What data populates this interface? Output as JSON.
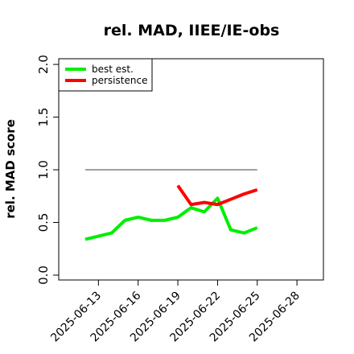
{
  "chart_data": {
    "type": "line",
    "title": "rel. MAD, IIEE/IE-obs",
    "y_label": "rel. MAD score",
    "x": [
      "2025-06-12",
      "2025-06-13",
      "2025-06-14",
      "2025-06-15",
      "2025-06-16",
      "2025-06-17",
      "2025-06-18",
      "2025-06-19",
      "2025-06-20",
      "2025-06-21",
      "2025-06-22",
      "2025-06-23",
      "2025-06-24",
      "2025-06-25"
    ],
    "series": [
      {
        "name": "best est.",
        "color": "#00ee00",
        "values": [
          0.34,
          0.37,
          0.4,
          0.52,
          0.55,
          0.52,
          0.52,
          0.55,
          0.64,
          0.6,
          0.73,
          0.43,
          0.4,
          0.45
        ]
      },
      {
        "name": "persistence",
        "color": "#ff0000",
        "values": [
          null,
          null,
          null,
          null,
          null,
          null,
          null,
          0.85,
          0.67,
          0.69,
          0.67,
          0.72,
          0.77,
          0.81
        ]
      }
    ],
    "reference_line": {
      "value": 1,
      "color": "#808080"
    },
    "xlim": [
      "2025-06-10",
      "2025-06-30"
    ],
    "xticks": [
      "2025-06-13",
      "2025-06-16",
      "2025-06-19",
      "2025-06-22",
      "2025-06-25",
      "2025-06-28"
    ],
    "ylim": [
      -0.046,
      2.054
    ],
    "yticks": [
      {
        "value": 0,
        "label": "0.0"
      },
      {
        "value": 0.5,
        "label": "0.5"
      },
      {
        "value": 1,
        "label": "1.0"
      },
      {
        "value": 1.5,
        "label": "1.5"
      },
      {
        "value": 2,
        "label": "2.0"
      }
    ],
    "legend": "top-left"
  }
}
